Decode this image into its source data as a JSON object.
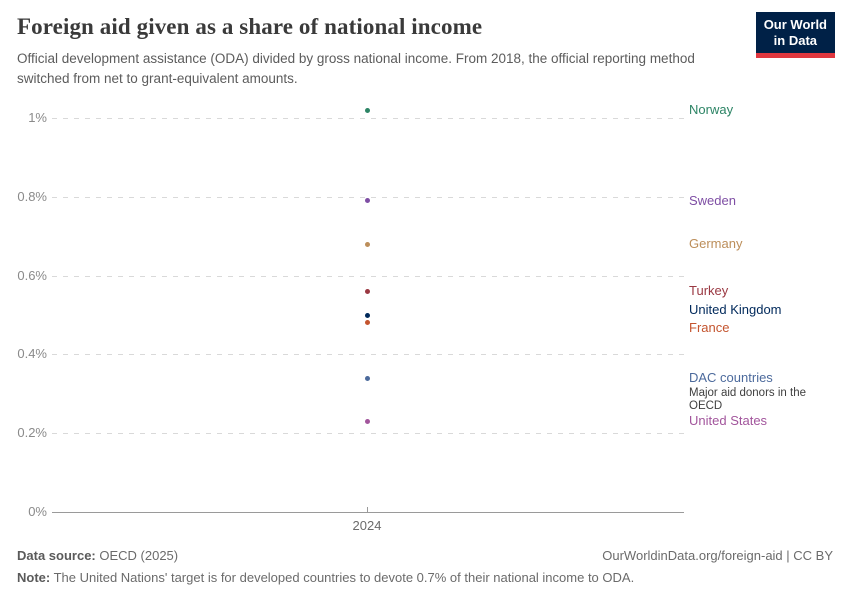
{
  "header": {
    "title": "Foreign aid given as a share of national income",
    "subtitle": "Official development assistance (ODA) divided by gross national income. From 2018, the official reporting method switched from net to grant-equivalent amounts.",
    "logo": {
      "line1": "Our World",
      "line2": "in Data",
      "bg_color": "#002147",
      "accent_color": "#e0373f"
    }
  },
  "chart_data": {
    "type": "scatter",
    "title": "Foreign aid given as a share of national income",
    "x_categories": [
      "2024"
    ],
    "x_tick_label": "2024",
    "xlabel": "",
    "ylabel": "",
    "ylim": [
      0,
      1.06
    ],
    "grid": "horizontal-dashed",
    "legend_position": "labels-right-of-plot",
    "yticks": [
      {
        "label": "1%",
        "value": 1.0
      },
      {
        "label": "0.8%",
        "value": 0.8
      },
      {
        "label": "0.6%",
        "value": 0.6
      },
      {
        "label": "0.4%",
        "value": 0.4
      },
      {
        "label": "0.2%",
        "value": 0.2
      },
      {
        "label": "0%",
        "value": 0.0
      }
    ],
    "series": [
      {
        "name": "Norway",
        "x": "2024",
        "value": 1.02,
        "color": "#2c8465"
      },
      {
        "name": "Sweden",
        "x": "2024",
        "value": 0.79,
        "color": "#7e4ea4"
      },
      {
        "name": "Germany",
        "x": "2024",
        "value": 0.68,
        "color": "#bc8e5a"
      },
      {
        "name": "Turkey",
        "x": "2024",
        "value": 0.56,
        "color": "#9a3842"
      },
      {
        "name": "United Kingdom",
        "x": "2024",
        "value": 0.5,
        "color": "#00295b"
      },
      {
        "name": "France",
        "x": "2024",
        "value": 0.48,
        "color": "#c4542e"
      },
      {
        "name": "DAC countries",
        "x": "2024",
        "value": 0.34,
        "color": "#4c6a9c",
        "note": "Major aid donors in the OECD"
      },
      {
        "name": "United States",
        "x": "2024",
        "value": 0.23,
        "color": "#a2559c"
      }
    ]
  },
  "footer": {
    "source_label": "Data source:",
    "source_value": " OECD (2025)",
    "link": "OurWorldinData.org/foreign-aid | CC BY",
    "note_label": "Note:",
    "note_value": " The United Nations' target is for developed countries to devote 0.7% of their national income to ODA."
  }
}
